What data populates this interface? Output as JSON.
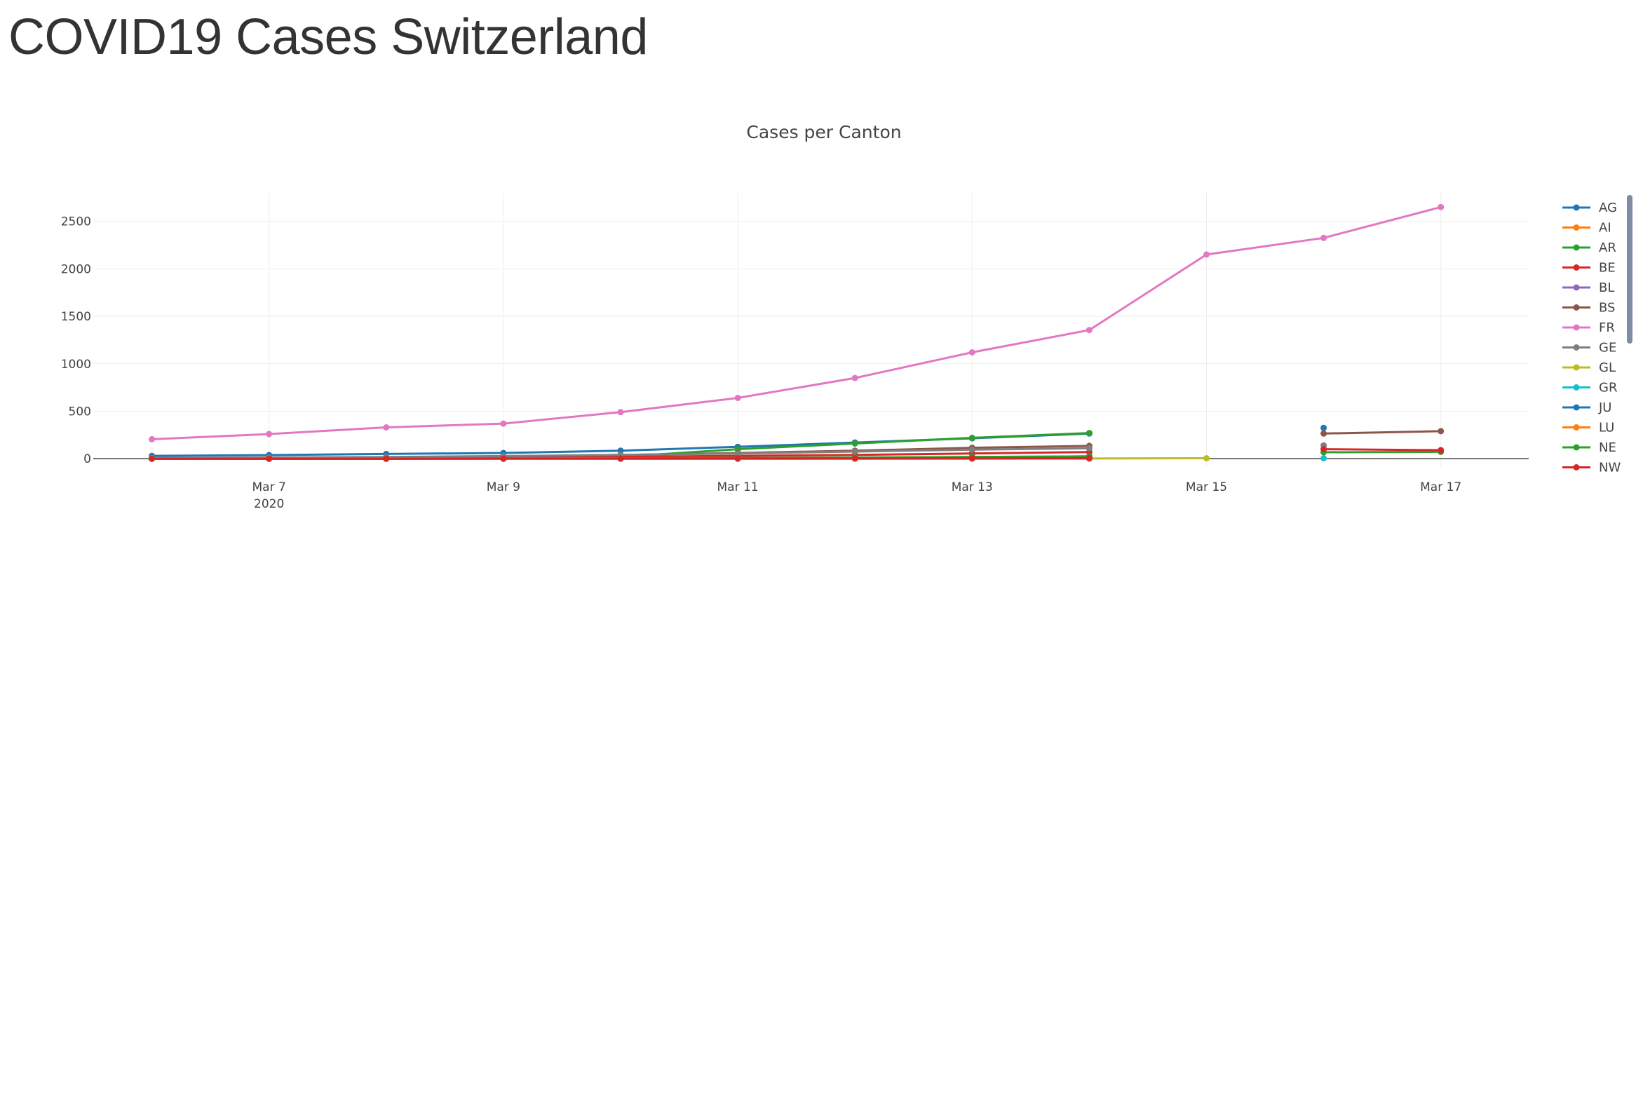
{
  "page": {
    "title": "COVID19 Cases Switzerland"
  },
  "chart_data": {
    "type": "line",
    "title": "Cases per Canton",
    "xlabel": "",
    "ylabel": "",
    "x_axis": {
      "type": "date",
      "range": [
        "2020-03-05T12:00",
        "2020-03-17T18:00"
      ],
      "tick_labels": [
        {
          "date": "2020-03-07",
          "label": "Mar 7",
          "sublabel": "2020"
        },
        {
          "date": "2020-03-09",
          "label": "Mar 9"
        },
        {
          "date": "2020-03-11",
          "label": "Mar 11"
        },
        {
          "date": "2020-03-13",
          "label": "Mar 13"
        },
        {
          "date": "2020-03-15",
          "label": "Mar 15"
        },
        {
          "date": "2020-03-17",
          "label": "Mar 17"
        }
      ]
    },
    "y_axis": {
      "range": [
        -80,
        2800
      ],
      "ticks": [
        0,
        500,
        1000,
        1500,
        2000,
        2500
      ]
    },
    "grid": true,
    "legend_position": "right",
    "series": [
      {
        "name": "AG",
        "color": "#1f77b4",
        "points": [
          [
            "2020-03-06",
            30
          ],
          [
            "2020-03-07",
            38
          ],
          [
            "2020-03-08",
            50
          ],
          [
            "2020-03-09",
            60
          ],
          [
            "2020-03-10",
            85
          ],
          [
            "2020-03-11",
            125
          ],
          [
            "2020-03-12",
            170
          ],
          [
            "2020-03-13",
            215
          ],
          [
            "2020-03-14",
            265
          ],
          [
            "2020-03-16",
            325
          ]
        ]
      },
      {
        "name": "AI",
        "color": "#ff7f0e",
        "points": [
          [
            "2020-03-06",
            0
          ],
          [
            "2020-03-07",
            0
          ],
          [
            "2020-03-08",
            0
          ],
          [
            "2020-03-09",
            0
          ],
          [
            "2020-03-10",
            0
          ],
          [
            "2020-03-11",
            1
          ],
          [
            "2020-03-12",
            1
          ],
          [
            "2020-03-13",
            2
          ],
          [
            "2020-03-14",
            3
          ]
        ]
      },
      {
        "name": "AR",
        "color": "#2ca02c",
        "points": [
          [
            "2020-03-06",
            0
          ],
          [
            "2020-03-07",
            2
          ],
          [
            "2020-03-08",
            5
          ],
          [
            "2020-03-09",
            10
          ],
          [
            "2020-03-10",
            20
          ],
          [
            "2020-03-11",
            100
          ],
          [
            "2020-03-12",
            160
          ],
          [
            "2020-03-13",
            220
          ],
          [
            "2020-03-14",
            270
          ]
        ]
      },
      {
        "name": "BE",
        "color": "#d62728",
        "points": [
          [
            "2020-03-06",
            2
          ],
          [
            "2020-03-07",
            4
          ],
          [
            "2020-03-08",
            8
          ],
          [
            "2020-03-09",
            12
          ],
          [
            "2020-03-10",
            20
          ],
          [
            "2020-03-11",
            30
          ],
          [
            "2020-03-12",
            40
          ],
          [
            "2020-03-13",
            55
          ],
          [
            "2020-03-14",
            70
          ]
        ]
      },
      {
        "name": "BL",
        "color": "#9467bd",
        "points": [
          [
            "2020-03-06",
            0
          ],
          [
            "2020-03-07",
            0
          ],
          [
            "2020-03-08",
            0
          ],
          [
            "2020-03-09",
            0
          ],
          [
            "2020-03-10",
            0
          ],
          [
            "2020-03-11",
            0
          ],
          [
            "2020-03-12",
            0
          ],
          [
            "2020-03-13",
            0
          ],
          [
            "2020-03-14",
            0
          ]
        ]
      },
      {
        "name": "BS",
        "color": "#8c564b",
        "points": [
          [
            "2020-03-06",
            5
          ],
          [
            "2020-03-07",
            10
          ],
          [
            "2020-03-08",
            15
          ],
          [
            "2020-03-09",
            25
          ],
          [
            "2020-03-10",
            40
          ],
          [
            "2020-03-11",
            60
          ],
          [
            "2020-03-12",
            85
          ],
          [
            "2020-03-13",
            115
          ],
          [
            "2020-03-14",
            135
          ],
          [
            "2020-03-16",
            265
          ],
          [
            "2020-03-17",
            290
          ]
        ]
      },
      {
        "name": "FR",
        "color": "#e377c2",
        "points": [
          [
            "2020-03-06",
            205
          ],
          [
            "2020-03-07",
            260
          ],
          [
            "2020-03-08",
            330
          ],
          [
            "2020-03-09",
            370
          ],
          [
            "2020-03-10",
            490
          ],
          [
            "2020-03-11",
            640
          ],
          [
            "2020-03-12",
            850
          ],
          [
            "2020-03-13",
            1120
          ],
          [
            "2020-03-14",
            1355
          ],
          [
            "2020-03-15",
            2150
          ],
          [
            "2020-03-16",
            2325
          ],
          [
            "2020-03-17",
            2650
          ]
        ]
      },
      {
        "name": "GE",
        "color": "#7f7f7f",
        "points": [
          [
            "2020-03-06",
            8
          ],
          [
            "2020-03-07",
            12
          ],
          [
            "2020-03-08",
            18
          ],
          [
            "2020-03-09",
            28
          ],
          [
            "2020-03-10",
            40
          ],
          [
            "2020-03-11",
            55
          ],
          [
            "2020-03-12",
            75
          ],
          [
            "2020-03-13",
            95
          ],
          [
            "2020-03-14",
            110
          ],
          [
            "2020-03-16",
            140
          ]
        ]
      },
      {
        "name": "GL",
        "color": "#bcbd22",
        "points": [
          [
            "2020-03-06",
            0
          ],
          [
            "2020-03-07",
            0
          ],
          [
            "2020-03-08",
            0
          ],
          [
            "2020-03-09",
            0
          ],
          [
            "2020-03-10",
            0
          ],
          [
            "2020-03-11",
            0
          ],
          [
            "2020-03-12",
            0
          ],
          [
            "2020-03-13",
            0
          ],
          [
            "2020-03-14",
            2
          ],
          [
            "2020-03-15",
            5
          ]
        ]
      },
      {
        "name": "GR",
        "color": "#17becf",
        "points": [
          [
            "2020-03-06",
            0
          ],
          [
            "2020-03-07",
            0
          ],
          [
            "2020-03-08",
            1
          ],
          [
            "2020-03-09",
            2
          ],
          [
            "2020-03-10",
            3
          ],
          [
            "2020-03-11",
            5
          ],
          [
            "2020-03-12",
            6
          ],
          [
            "2020-03-13",
            8
          ],
          [
            "2020-03-14",
            10
          ],
          [
            "2020-03-16",
            5
          ]
        ]
      },
      {
        "name": "JU",
        "color": "#1f77b4",
        "points": [
          [
            "2020-03-06",
            0
          ],
          [
            "2020-03-07",
            0
          ],
          [
            "2020-03-08",
            0
          ],
          [
            "2020-03-09",
            1
          ],
          [
            "2020-03-10",
            2
          ],
          [
            "2020-03-11",
            3
          ],
          [
            "2020-03-12",
            4
          ],
          [
            "2020-03-13",
            6
          ],
          [
            "2020-03-14",
            8
          ]
        ]
      },
      {
        "name": "LU",
        "color": "#ff7f0e",
        "points": [
          [
            "2020-03-06",
            0
          ],
          [
            "2020-03-07",
            1
          ],
          [
            "2020-03-08",
            2
          ],
          [
            "2020-03-09",
            3
          ],
          [
            "2020-03-10",
            5
          ],
          [
            "2020-03-11",
            8
          ],
          [
            "2020-03-12",
            12
          ],
          [
            "2020-03-13",
            18
          ],
          [
            "2020-03-14",
            25
          ]
        ]
      },
      {
        "name": "NE",
        "color": "#2ca02c",
        "points": [
          [
            "2020-03-06",
            0
          ],
          [
            "2020-03-07",
            0
          ],
          [
            "2020-03-08",
            1
          ],
          [
            "2020-03-09",
            2
          ],
          [
            "2020-03-10",
            4
          ],
          [
            "2020-03-11",
            8
          ],
          [
            "2020-03-12",
            12
          ],
          [
            "2020-03-13",
            18
          ],
          [
            "2020-03-14",
            25
          ],
          [
            "2020-03-16",
            68
          ],
          [
            "2020-03-17",
            72
          ]
        ]
      },
      {
        "name": "NW",
        "color": "#d62728",
        "points": [
          [
            "2020-03-06",
            0
          ],
          [
            "2020-03-07",
            0
          ],
          [
            "2020-03-08",
            0
          ],
          [
            "2020-03-09",
            1
          ],
          [
            "2020-03-10",
            1
          ],
          [
            "2020-03-11",
            2
          ],
          [
            "2020-03-12",
            3
          ],
          [
            "2020-03-13",
            4
          ],
          [
            "2020-03-14",
            6
          ],
          [
            "2020-03-16",
            100
          ],
          [
            "2020-03-17",
            90
          ]
        ]
      }
    ]
  }
}
